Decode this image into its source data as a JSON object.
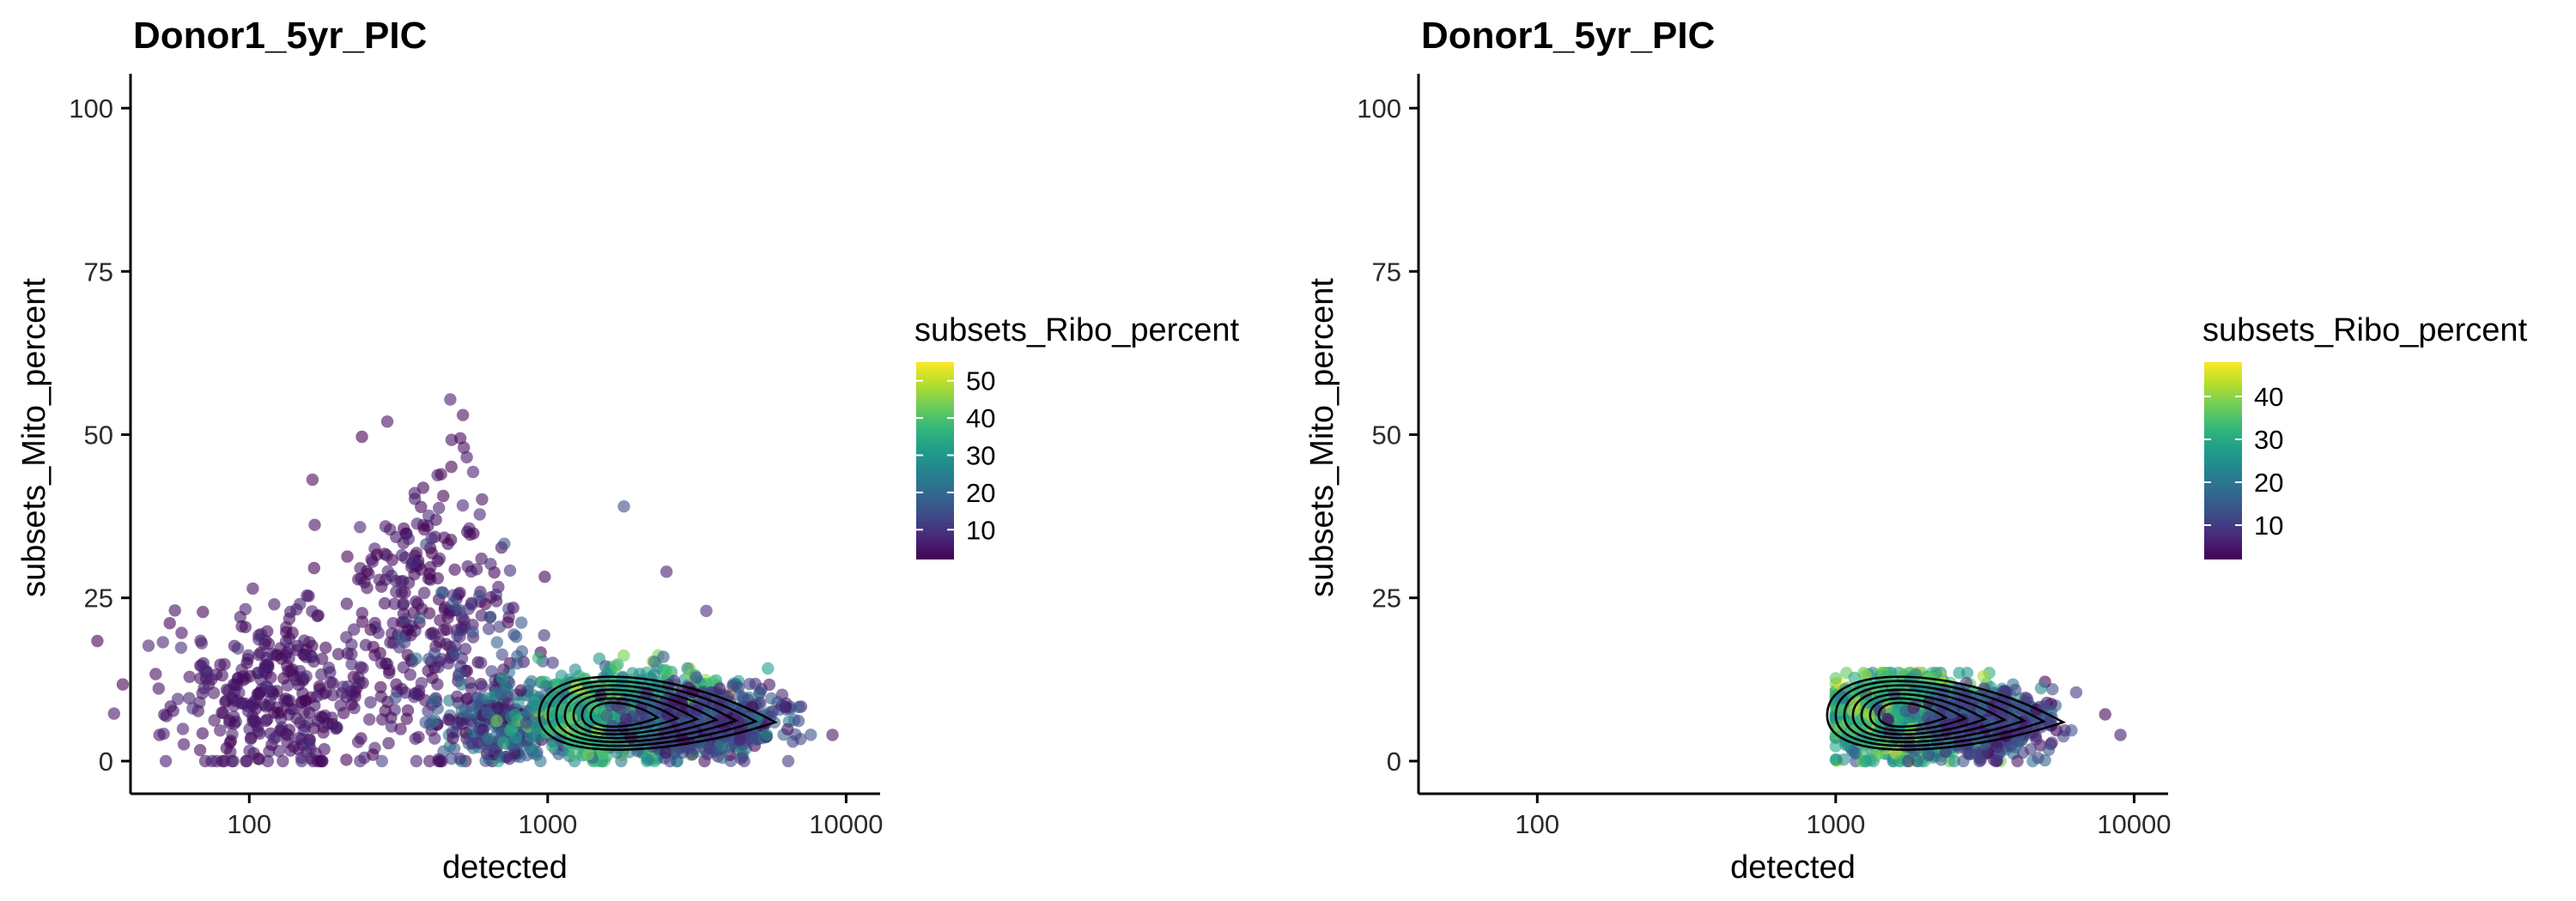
{
  "colors": {
    "viridis": [
      "#440154",
      "#482878",
      "#3E4A89",
      "#31688E",
      "#26828E",
      "#1F9E89",
      "#35B779",
      "#6DCD59",
      "#B4DE2C",
      "#FDE725"
    ],
    "contour": "#000000",
    "axis": "#000000",
    "background": "#ffffff"
  },
  "chart_data": [
    {
      "type": "scatter",
      "title": "Donor1_5yr_PIC",
      "xlabel": "detected",
      "ylabel": "subsets_Mito_percent",
      "x_scale": "log10",
      "xlim": [
        40,
        13000
      ],
      "ylim": [
        -5,
        105
      ],
      "x_ticks": [
        {
          "value": 100,
          "label": "100"
        },
        {
          "value": 1000,
          "label": "1000"
        },
        {
          "value": 10000,
          "label": "10000"
        }
      ],
      "y_ticks": [
        {
          "value": 0,
          "label": "0"
        },
        {
          "value": 25,
          "label": "25"
        },
        {
          "value": 50,
          "label": "50"
        },
        {
          "value": 75,
          "label": "75"
        },
        {
          "value": 100,
          "label": "100"
        }
      ],
      "grid": false,
      "point_alpha": 0.6,
      "color_by": "subsets_Ribo_percent",
      "legend": {
        "title": "subsets_Ribo_percent",
        "placement": "right",
        "range": [
          2,
          55
        ],
        "ticks": [
          {
            "value": 10,
            "label": "10"
          },
          {
            "value": 20,
            "label": "20"
          },
          {
            "value": 30,
            "label": "30"
          },
          {
            "value": 40,
            "label": "40"
          },
          {
            "value": 50,
            "label": "50"
          }
        ]
      },
      "density_contour": {
        "center": [
          1700,
          7
        ],
        "levels": 7
      },
      "clusters": [
        {
          "n": 360,
          "log_x_mean": 2.12,
          "log_x_sd": 0.2,
          "y_mean": 10,
          "y_sd": 6,
          "c_mean": 5,
          "c_sd": 2
        },
        {
          "n": 200,
          "log_x_mean": 2.6,
          "log_x_sd": 0.13,
          "y_mean": 26,
          "y_sd": 11,
          "c_mean": 4,
          "c_sd": 2
        },
        {
          "n": 90,
          "log_x_mean": 2.78,
          "log_x_sd": 0.14,
          "y_mean": 18,
          "y_sd": 8,
          "c_mean": 10,
          "c_sd": 5
        },
        {
          "n": 260,
          "log_x_mean": 2.85,
          "log_x_sd": 0.12,
          "y_mean": 6,
          "y_sd": 3.5,
          "c_mean": 14,
          "c_sd": 8
        },
        {
          "n": 1300,
          "log_x_mean": 3.27,
          "log_x_sd": 0.15,
          "y_mean": 7,
          "y_sd": 3,
          "c_mean": 32,
          "c_sd": 8
        },
        {
          "n": 520,
          "log_x_mean": 3.52,
          "log_x_sd": 0.13,
          "y_mean": 6,
          "y_sd": 2.5,
          "c_mean": 12,
          "c_sd": 6
        }
      ],
      "extra_points": [
        {
          "x": 50,
          "y": 4,
          "c": 5
        },
        {
          "x": 9000,
          "y": 4,
          "c": 5
        },
        {
          "x": 520,
          "y": 53,
          "c": 4
        },
        {
          "x": 290,
          "y": 52,
          "c": 4
        },
        {
          "x": 1800,
          "y": 39,
          "c": 14
        },
        {
          "x": 3400,
          "y": 23,
          "c": 8
        },
        {
          "x": 2500,
          "y": 29,
          "c": 6
        }
      ]
    },
    {
      "type": "scatter",
      "title": "Donor1_5yr_PIC",
      "xlabel": "detected",
      "ylabel": "subsets_Mito_percent",
      "x_scale": "log10",
      "xlim": [
        40,
        13000
      ],
      "ylim": [
        -5,
        105
      ],
      "x_ticks": [
        {
          "value": 100,
          "label": "100"
        },
        {
          "value": 1000,
          "label": "1000"
        },
        {
          "value": 10000,
          "label": "10000"
        }
      ],
      "y_ticks": [
        {
          "value": 0,
          "label": "0"
        },
        {
          "value": 25,
          "label": "25"
        },
        {
          "value": 50,
          "label": "50"
        },
        {
          "value": 75,
          "label": "75"
        },
        {
          "value": 100,
          "label": "100"
        }
      ],
      "grid": false,
      "point_alpha": 0.6,
      "color_by": "subsets_Ribo_percent",
      "legend": {
        "title": "subsets_Ribo_percent",
        "placement": "right",
        "range": [
          2,
          48
        ],
        "ticks": [
          {
            "value": 10,
            "label": "10"
          },
          {
            "value": 20,
            "label": "20"
          },
          {
            "value": 30,
            "label": "30"
          },
          {
            "value": 40,
            "label": "40"
          }
        ]
      },
      "density_contour": {
        "center": [
          1700,
          7
        ],
        "levels": 7
      },
      "clusters": [
        {
          "n": 1300,
          "log_x_mean": 3.25,
          "log_x_sd": 0.13,
          "y_mean": 7,
          "y_sd": 3,
          "c_mean": 30,
          "c_sd": 8
        },
        {
          "n": 450,
          "log_x_mean": 3.5,
          "log_x_sd": 0.12,
          "y_mean": 6,
          "y_sd": 2.5,
          "c_mean": 11,
          "c_sd": 5
        }
      ],
      "x_clip": [
        1000,
        8000
      ],
      "y_clip": [
        0,
        13.5
      ],
      "extra_points": [
        {
          "x": 9000,
          "y": 4,
          "c": 5
        }
      ]
    }
  ]
}
